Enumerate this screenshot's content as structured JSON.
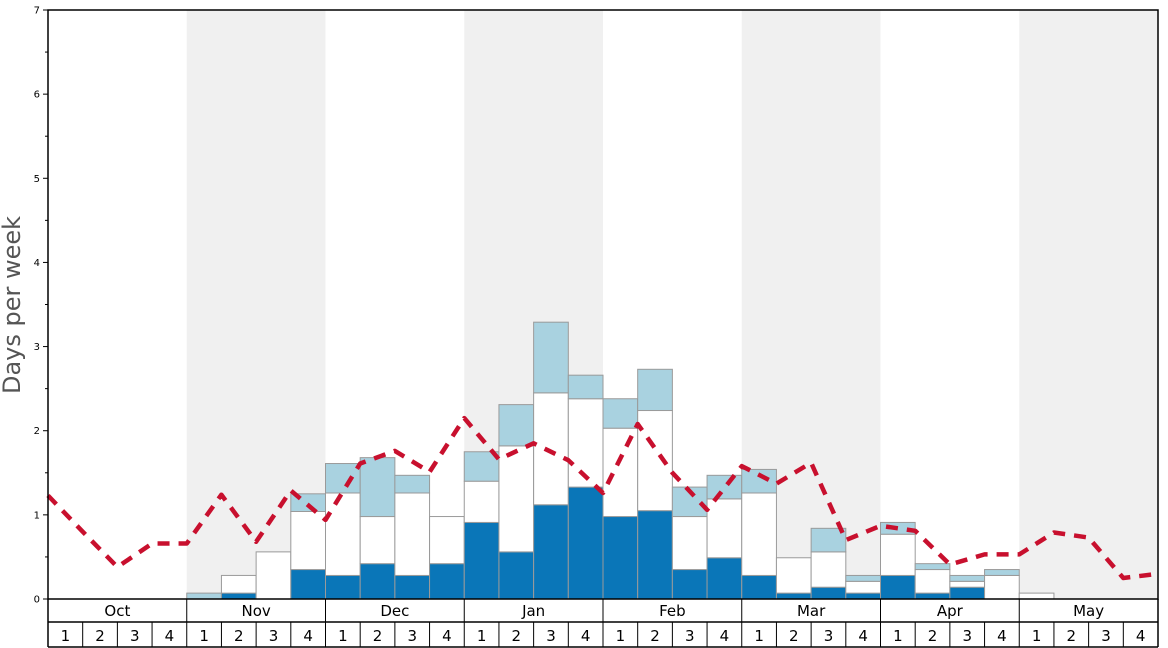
{
  "chart_data": {
    "type": "bar",
    "ylabel": "Days per week",
    "ylim": [
      0,
      7
    ],
    "y_ticks": [
      "0",
      "1",
      "2",
      "3",
      "4",
      "5",
      "6",
      "7"
    ],
    "months": [
      "Oct",
      "Nov",
      "Dec",
      "Jan",
      "Feb",
      "Mar",
      "Apr",
      "May"
    ],
    "week_labels": [
      "1",
      "2",
      "3",
      "4"
    ],
    "month_band_colors": [
      "#ffffff",
      "#f0f0f0"
    ],
    "stacked_bars": {
      "stack_order_bottom_to_top": [
        "dark",
        "white",
        "light"
      ],
      "colors": {
        "dark": "#0a76b8",
        "white": "#ffffff",
        "light": "#a9d2e0"
      },
      "dark": [
        0,
        0,
        0,
        0,
        0,
        0.07,
        0,
        0.35,
        0.28,
        0.42,
        0.28,
        0.42,
        0.91,
        0.56,
        1.12,
        1.33,
        0.98,
        1.05,
        0.35,
        0.49,
        0.28,
        0.07,
        0.14,
        0.07,
        0.28,
        0.07,
        0.14,
        0,
        0,
        0,
        0,
        0
      ],
      "white": [
        0,
        0,
        0,
        0,
        0,
        0.21,
        0.56,
        0.69,
        0.98,
        0.56,
        0.98,
        0.56,
        0.49,
        1.26,
        1.33,
        1.05,
        1.05,
        1.19,
        0.63,
        0.7,
        0.98,
        0.42,
        0.42,
        0.14,
        0.49,
        0.28,
        0.07,
        0.28,
        0.07,
        0,
        0,
        0
      ],
      "light": [
        0,
        0,
        0,
        0,
        0.07,
        0,
        0,
        0.21,
        0.35,
        0.7,
        0.21,
        0,
        0.35,
        0.49,
        0.84,
        0.28,
        0.35,
        0.49,
        0.35,
        0.28,
        0.28,
        0,
        0.28,
        0.07,
        0.14,
        0.07,
        0.07,
        0.07,
        0,
        0,
        0,
        0
      ]
    },
    "average_line": {
      "color": "#c8102e",
      "style": "dashed",
      "values": [
        1.23,
        0.8,
        0.38,
        0.66,
        0.66,
        1.24,
        0.68,
        1.29,
        0.94,
        1.61,
        1.76,
        1.51,
        2.15,
        1.66,
        1.85,
        1.65,
        1.26,
        2.08,
        1.5,
        1.06,
        1.58,
        1.37,
        1.62,
        0.7,
        0.87,
        0.81,
        0.41,
        0.53,
        0.53,
        0.79,
        0.73,
        0.25,
        0.3
      ]
    }
  }
}
